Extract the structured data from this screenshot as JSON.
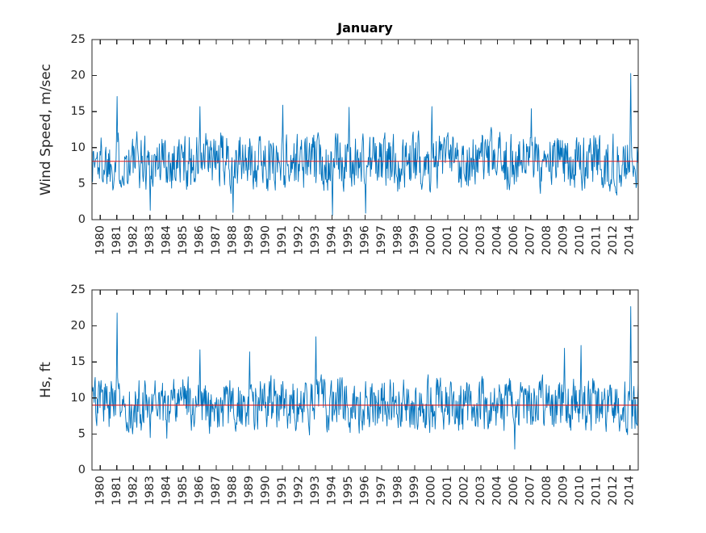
{
  "figure": {
    "title": "January"
  },
  "colors": {
    "series": "#0072BD",
    "mean_line": "#E31E1E",
    "axis": "#262626",
    "background": "#FFFFFF",
    "title_text": "#000000"
  },
  "chart_data": [
    {
      "type": "line",
      "title": "January",
      "xlabel": "",
      "ylabel": "Wind Speed, m/sec",
      "ylim": [
        0,
        25
      ],
      "yticks": [
        "0",
        "5",
        "10",
        "15",
        "20",
        "25"
      ],
      "xtick_labels": [
        "1980",
        "1981",
        "1982",
        "1983",
        "1984",
        "1985",
        "1986",
        "1987",
        "1988",
        "1989",
        "1990",
        "1991",
        "1992",
        "1993",
        "1994",
        "1995",
        "1996",
        "1997",
        "1998",
        "1999",
        "2000",
        "2001",
        "2002",
        "2003",
        "2004",
        "2006",
        "2007",
        "2008",
        "2009",
        "2010",
        "2011",
        "2012",
        "2014"
      ],
      "note": "dense daily January wind-speed trace; years 2005 and 2013 absent from axis",
      "grid": false,
      "legend": null,
      "series_name": "wind speed",
      "series_color": "#0072BD",
      "mean_line": {
        "value": 8.1,
        "color": "#E31E1E"
      },
      "points_per_year": 31,
      "gen": {
        "seed": 1337,
        "mean": 8.1,
        "ar": 0.3,
        "amp": 3.5,
        "clamp": [
          1.0,
          15.9
        ]
      },
      "peaks": [
        {
          "year": "1981",
          "value": 17.1
        },
        {
          "year": "1986",
          "value": 15.7
        },
        {
          "year": "1991",
          "value": 15.9
        },
        {
          "year": "1995",
          "value": 15.6
        },
        {
          "year": "2000",
          "value": 15.7
        },
        {
          "year": "2007",
          "value": 15.4
        },
        {
          "year": "2014",
          "value": 20.3
        }
      ],
      "lows": [
        {
          "year": "1983",
          "value": 1.3
        },
        {
          "year": "1988",
          "value": 1.0
        },
        {
          "year": "1994",
          "value": 0.6
        },
        {
          "year": "1996",
          "value": 0.9
        }
      ]
    },
    {
      "type": "line",
      "title": "",
      "xlabel": "",
      "ylabel": "Hs, ft",
      "ylim": [
        0,
        25
      ],
      "yticks": [
        "0",
        "5",
        "10",
        "15",
        "20",
        "25"
      ],
      "xtick_labels": [
        "1980",
        "1981",
        "1982",
        "1983",
        "1984",
        "1985",
        "1986",
        "1987",
        "1988",
        "1989",
        "1990",
        "1991",
        "1992",
        "1993",
        "1994",
        "1995",
        "1996",
        "1997",
        "1998",
        "1999",
        "2000",
        "2001",
        "2002",
        "2003",
        "2004",
        "2006",
        "2007",
        "2008",
        "2009",
        "2010",
        "2011",
        "2012",
        "2014"
      ],
      "note": "dense daily January significant-wave-height trace; years 2005 and 2013 absent from axis",
      "grid": false,
      "legend": null,
      "series_name": "Hs",
      "series_color": "#0072BD",
      "mean_line": {
        "value": 9.0,
        "color": "#E31E1E"
      },
      "points_per_year": 31,
      "gen": {
        "seed": 2718,
        "mean": 9.0,
        "ar": 0.3,
        "amp": 3.2,
        "clamp": [
          3.4,
          16.9
        ]
      },
      "peaks": [
        {
          "year": "1981",
          "value": 21.8
        },
        {
          "year": "1986",
          "value": 16.7
        },
        {
          "year": "1989",
          "value": 16.4
        },
        {
          "year": "1993",
          "value": 18.5
        },
        {
          "year": "2009",
          "value": 16.9
        },
        {
          "year": "2010",
          "value": 17.3
        },
        {
          "year": "2014",
          "value": 22.7
        }
      ],
      "lows": [
        {
          "year": "1983",
          "value": 4.5
        },
        {
          "year": "1984",
          "value": 4.4
        },
        {
          "year": "2006",
          "value": 2.9
        }
      ]
    }
  ]
}
